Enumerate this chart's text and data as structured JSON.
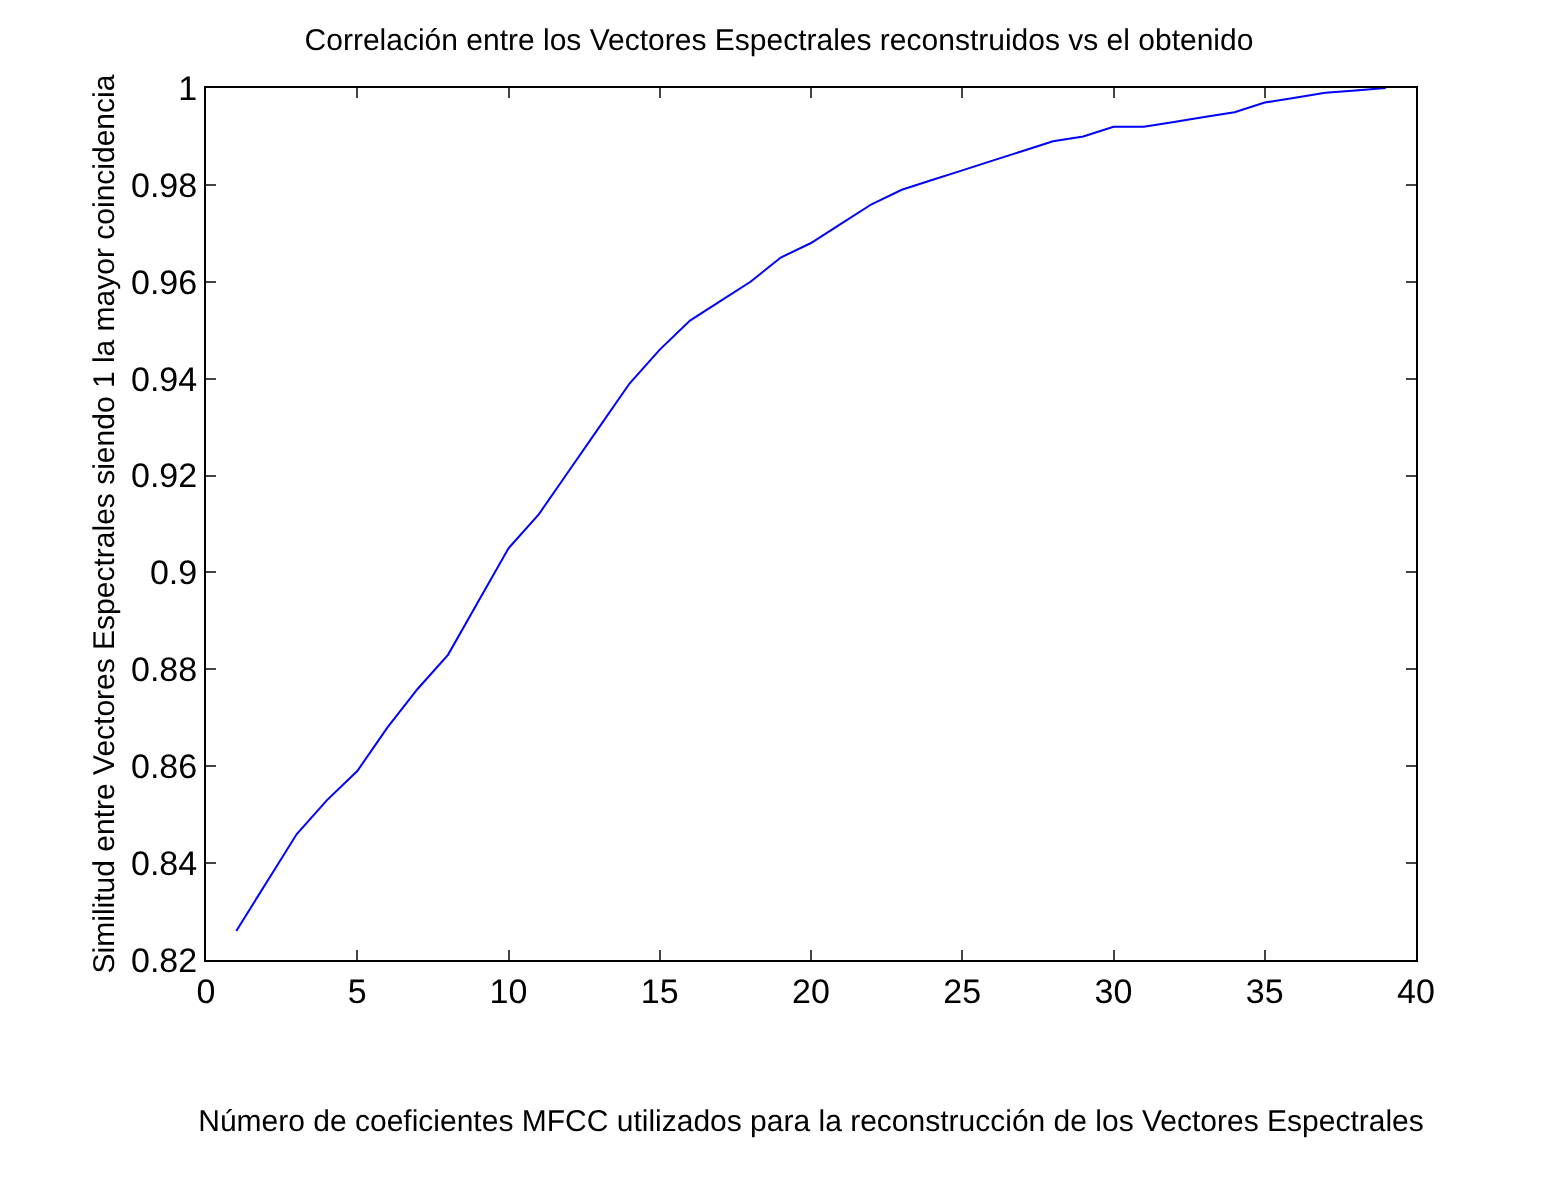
{
  "chart_data": {
    "type": "line",
    "title": "Correlación entre los Vectores Espectrales reconstruidos vs el obtenido",
    "xlabel": "Número de coeficientes MFCC utilizados para la reconstrucción de los Vectores Espectrales",
    "ylabel": "Similitud entre Vectores Espectrales siendo 1 la mayor coincidencia",
    "x": [
      1,
      2,
      3,
      4,
      5,
      6,
      7,
      8,
      9,
      10,
      11,
      12,
      13,
      14,
      15,
      16,
      17,
      18,
      19,
      20,
      21,
      22,
      23,
      24,
      25,
      26,
      27,
      28,
      29,
      30,
      31,
      32,
      33,
      34,
      35,
      36,
      37,
      38,
      39
    ],
    "series": [
      {
        "color": "#0000ff",
        "values": [
          0.826,
          0.836,
          0.846,
          0.853,
          0.859,
          0.868,
          0.876,
          0.883,
          0.894,
          0.905,
          0.912,
          0.921,
          0.93,
          0.939,
          0.946,
          0.952,
          0.956,
          0.96,
          0.965,
          0.968,
          0.972,
          0.976,
          0.979,
          0.981,
          0.983,
          0.985,
          0.987,
          0.989,
          0.99,
          0.992,
          0.992,
          0.993,
          0.994,
          0.995,
          0.997,
          0.998,
          0.999,
          0.9995,
          1.0
        ]
      }
    ],
    "xlim": [
      0,
      40
    ],
    "xticks": [
      0,
      5,
      10,
      15,
      20,
      25,
      30,
      35,
      40
    ],
    "ylim": [
      0.82,
      1
    ],
    "yticks": [
      0.82,
      0.84,
      0.86,
      0.88,
      0.9,
      0.92,
      0.94,
      0.96,
      0.98,
      {
        "value": 1,
        "label": "1"
      }
    ],
    "legend": false,
    "marker": "none",
    "line_style": "solid"
  }
}
